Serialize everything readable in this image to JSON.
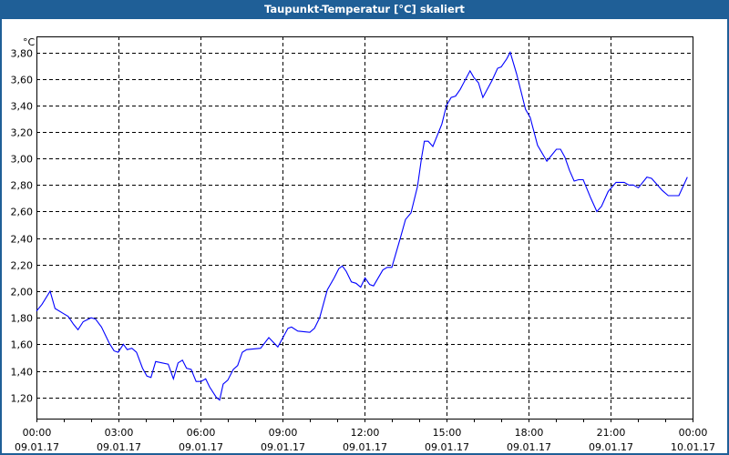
{
  "window": {
    "title": "Taupunkt-Temperatur [°C] skaliert"
  },
  "colors": {
    "titlebar": "#1f5f97",
    "line": "#0000ff",
    "grid": "#000000"
  },
  "chart_data": {
    "type": "line",
    "title": "Taupunkt-Temperatur [°C] skaliert",
    "ylabel": "°C",
    "xlabel": "",
    "xlim": [
      0,
      24
    ],
    "ylim": [
      1.04,
      3.92
    ],
    "grid": true,
    "yticks": [
      1.2,
      1.4,
      1.6,
      1.8,
      2.0,
      2.2,
      2.4,
      2.6,
      2.8,
      3.0,
      3.2,
      3.4,
      3.6,
      3.8
    ],
    "ytick_labels": [
      "1,20",
      "1,40",
      "1,60",
      "1,80",
      "2,00",
      "2,20",
      "2,40",
      "2,60",
      "2,80",
      "3,00",
      "3,20",
      "3,40",
      "3,60",
      "3,80"
    ],
    "xticks": [
      0,
      3,
      6,
      9,
      12,
      15,
      18,
      21,
      24
    ],
    "xtick_labels": [
      {
        "time": "00:00",
        "date": "09.01.17"
      },
      {
        "time": "03:00",
        "date": "09.01.17"
      },
      {
        "time": "06:00",
        "date": "09.01.17"
      },
      {
        "time": "09:00",
        "date": "09.01.17"
      },
      {
        "time": "12:00",
        "date": "09.01.17"
      },
      {
        "time": "15:00",
        "date": "09.01.17"
      },
      {
        "time": "18:00",
        "date": "09.01.17"
      },
      {
        "time": "21:00",
        "date": "09.01.17"
      },
      {
        "time": "00:00",
        "date": "10.01.17"
      }
    ],
    "series": [
      {
        "name": "Taupunkt-Temperatur",
        "x": [
          0,
          0.2,
          0.5,
          0.68,
          1.0,
          1.16,
          1.36,
          1.52,
          1.71,
          2.0,
          2.16,
          2.38,
          2.66,
          2.84,
          2.99,
          3.18,
          3.32,
          3.49,
          3.66,
          3.88,
          4.04,
          4.19,
          4.36,
          4.82,
          5.01,
          5.18,
          5.34,
          5.49,
          5.66,
          5.84,
          6.02,
          6.19,
          6.33,
          6.58,
          6.7,
          6.83,
          7.0,
          7.2,
          7.36,
          7.53,
          7.69,
          8.2,
          8.5,
          8.83,
          9.2,
          9.33,
          9.56,
          10.0,
          10.17,
          10.36,
          10.64,
          10.89,
          11.06,
          11.19,
          11.33,
          11.52,
          11.69,
          11.86,
          12.02,
          12.19,
          12.33,
          12.67,
          12.83,
          13.0,
          13.31,
          13.5,
          13.7,
          13.94,
          14.09,
          14.19,
          14.33,
          14.5,
          14.83,
          15.0,
          15.17,
          15.33,
          15.5,
          15.86,
          16.0,
          16.17,
          16.33,
          16.67,
          16.87,
          17.0,
          17.2,
          17.33,
          17.56,
          17.72,
          17.89,
          18.06,
          18.33,
          18.67,
          19.02,
          19.17,
          19.33,
          19.5,
          19.67,
          19.83,
          20.0,
          20.28,
          20.5,
          20.67,
          20.91,
          21.2,
          21.5,
          21.67,
          21.83,
          22.02,
          22.33,
          22.5,
          22.89,
          23.11,
          23.5,
          23.81
        ],
        "values": [
          1.85,
          1.9,
          2.0,
          1.87,
          1.83,
          1.81,
          1.75,
          1.71,
          1.77,
          1.8,
          1.79,
          1.73,
          1.61,
          1.55,
          1.54,
          1.6,
          1.56,
          1.57,
          1.54,
          1.42,
          1.36,
          1.35,
          1.47,
          1.45,
          1.34,
          1.46,
          1.48,
          1.42,
          1.41,
          1.32,
          1.32,
          1.34,
          1.28,
          1.2,
          1.18,
          1.3,
          1.33,
          1.41,
          1.44,
          1.54,
          1.56,
          1.57,
          1.65,
          1.58,
          1.72,
          1.73,
          1.7,
          1.69,
          1.72,
          1.8,
          2.01,
          2.1,
          2.17,
          2.19,
          2.15,
          2.07,
          2.06,
          2.03,
          2.1,
          2.05,
          2.04,
          2.16,
          2.18,
          2.18,
          2.4,
          2.54,
          2.59,
          2.79,
          3.01,
          3.13,
          3.13,
          3.09,
          3.26,
          3.4,
          3.46,
          3.47,
          3.52,
          3.66,
          3.61,
          3.57,
          3.46,
          3.59,
          3.68,
          3.69,
          3.75,
          3.8,
          3.64,
          3.51,
          3.37,
          3.31,
          3.1,
          2.98,
          3.07,
          3.07,
          3.01,
          2.91,
          2.83,
          2.84,
          2.84,
          2.7,
          2.6,
          2.64,
          2.75,
          2.82,
          2.82,
          2.8,
          2.8,
          2.78,
          2.86,
          2.85,
          2.76,
          2.72,
          2.72,
          2.86
        ]
      }
    ]
  }
}
